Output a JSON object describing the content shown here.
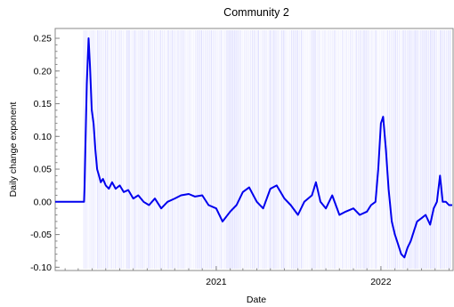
{
  "chart_data": {
    "type": "line",
    "title": "Community 2",
    "xlabel": "Date",
    "ylabel": "Daily change exponent",
    "ylim": [
      -0.105,
      0.265
    ],
    "xlim": [
      "2020-01-10",
      "2022-06-10"
    ],
    "yticks": [
      -0.1,
      -0.05,
      0.0,
      0.05,
      0.1,
      0.15,
      0.2,
      0.25
    ],
    "ytick_labels": [
      "-0.10",
      "-0.05",
      "0.00",
      "0.05",
      "0.10",
      "0.15",
      "0.20",
      "0.25"
    ],
    "xticks": [
      "2021-01-01",
      "2022-01-01"
    ],
    "xtick_labels": [
      "2021",
      "2022"
    ],
    "grid": false,
    "colors": {
      "line": "#0000ee",
      "band": "#3333ff"
    },
    "series": [
      {
        "values_x": [
          "2020-01-10",
          "2020-03-14",
          "2020-03-15",
          "2020-03-20",
          "2020-03-24",
          "2020-03-27",
          "2020-03-31",
          "2020-04-04",
          "2020-04-08",
          "2020-04-12",
          "2020-04-16",
          "2020-04-20",
          "2020-04-25",
          "2020-05-01",
          "2020-05-08",
          "2020-05-15",
          "2020-05-23",
          "2020-06-01",
          "2020-06-10",
          "2020-06-20",
          "2020-07-01",
          "2020-07-12",
          "2020-07-24",
          "2020-08-05",
          "2020-08-18",
          "2020-09-01",
          "2020-09-15",
          "2020-10-01",
          "2020-10-15",
          "2020-11-01",
          "2020-11-15",
          "2020-12-01",
          "2020-12-15",
          "2021-01-01",
          "2021-01-15",
          "2021-02-01",
          "2021-02-15",
          "2021-03-01",
          "2021-03-15",
          "2021-04-01",
          "2021-04-15",
          "2021-05-01",
          "2021-05-15",
          "2021-06-01",
          "2021-06-15",
          "2021-07-01",
          "2021-07-15",
          "2021-08-01",
          "2021-08-10",
          "2021-08-20",
          "2021-09-01",
          "2021-09-15",
          "2021-10-01",
          "2021-10-15",
          "2021-11-01",
          "2021-11-15",
          "2021-12-01",
          "2021-12-10",
          "2021-12-20",
          "2021-12-26",
          "2022-01-01",
          "2022-01-06",
          "2022-01-12",
          "2022-01-18",
          "2022-01-25",
          "2022-02-01",
          "2022-02-08",
          "2022-02-15",
          "2022-02-22",
          "2022-03-01",
          "2022-03-08",
          "2022-03-15",
          "2022-03-22",
          "2022-04-01",
          "2022-04-10",
          "2022-04-20",
          "2022-04-28",
          "2022-05-05",
          "2022-05-12",
          "2022-05-18",
          "2022-05-25",
          "2022-06-01",
          "2022-06-08"
        ],
        "values_y": [
          0.0,
          0.0,
          0.02,
          0.18,
          0.25,
          0.21,
          0.14,
          0.12,
          0.08,
          0.05,
          0.04,
          0.03,
          0.035,
          0.025,
          0.02,
          0.03,
          0.02,
          0.025,
          0.015,
          0.018,
          0.005,
          0.01,
          0.0,
          -0.005,
          0.005,
          -0.01,
          0.0,
          0.005,
          0.01,
          0.012,
          0.008,
          0.01,
          -0.005,
          -0.01,
          -0.03,
          -0.015,
          -0.005,
          0.015,
          0.022,
          0.0,
          -0.01,
          0.02,
          0.025,
          0.005,
          -0.005,
          -0.02,
          0.0,
          0.01,
          0.03,
          0.0,
          -0.01,
          0.01,
          -0.02,
          -0.015,
          -0.01,
          -0.02,
          -0.015,
          -0.005,
          0.0,
          0.05,
          0.12,
          0.13,
          0.08,
          0.02,
          -0.03,
          -0.05,
          -0.065,
          -0.08,
          -0.085,
          -0.07,
          -0.06,
          -0.045,
          -0.03,
          -0.025,
          -0.02,
          -0.035,
          -0.01,
          0.0,
          0.04,
          0.0,
          0.0,
          -0.005,
          -0.005
        ]
      }
    ]
  }
}
